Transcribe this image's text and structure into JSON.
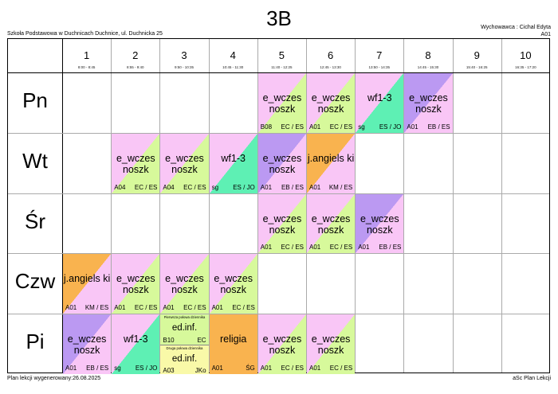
{
  "title": "3B",
  "school": "Szkoła Podstawowa w Duchnicach Duchnice, ul. Duchnicka 25",
  "teacher": "Wychowawca : Cichal Edyta",
  "room": "A01",
  "footer_left": "Plan lekcji wygenerowany:26.08.2025",
  "footer_right": "aSc Plan Lekcji",
  "colors": {
    "pink": "#f9c6f6",
    "lime": "#d7f99b",
    "teal": "#5ef0b4",
    "purple": "#bb99f2",
    "orange": "#f9b34f",
    "yellow": "#f9f9a8"
  },
  "periods": [
    {
      "num": "1",
      "time": "8:00 - 8:45"
    },
    {
      "num": "2",
      "time": "8:55 - 9:40"
    },
    {
      "num": "3",
      "time": "9:50 - 10:35"
    },
    {
      "num": "4",
      "time": "10:45 - 11:30"
    },
    {
      "num": "5",
      "time": "11:40 - 12:25"
    },
    {
      "num": "6",
      "time": "12:45 - 13:30"
    },
    {
      "num": "7",
      "time": "13:50 - 14:35"
    },
    {
      "num": "8",
      "time": "14:45 - 15:30"
    },
    {
      "num": "9",
      "time": "15:40 - 16:25"
    },
    {
      "num": "10",
      "time": "16:35 - 17:20"
    }
  ],
  "days": [
    "Pn",
    "Wt",
    "Śr",
    "Czw",
    "Pi"
  ],
  "lessons": [
    {
      "day": 0,
      "period": 5,
      "subject": "e_wczes noszk",
      "room": "B08",
      "teacher": "EC / ES",
      "c1": "pink",
      "c2": "lime"
    },
    {
      "day": 0,
      "period": 6,
      "subject": "e_wczes noszk",
      "room": "A01",
      "teacher": "EC / ES",
      "c1": "pink",
      "c2": "lime"
    },
    {
      "day": 0,
      "period": 7,
      "subject": "wf1-3",
      "room": "sg",
      "teacher": "ES / JO",
      "c1": "pink",
      "c2": "teal"
    },
    {
      "day": 0,
      "period": 8,
      "subject": "e_wczes noszk",
      "room": "A01",
      "teacher": "EB / ES",
      "c1": "purple",
      "c2": "pink"
    },
    {
      "day": 1,
      "period": 2,
      "subject": "e_wczes noszk",
      "room": "A04",
      "teacher": "EC / ES",
      "c1": "pink",
      "c2": "lime"
    },
    {
      "day": 1,
      "period": 3,
      "subject": "e_wczes noszk",
      "room": "A04",
      "teacher": "EC / ES",
      "c1": "pink",
      "c2": "lime"
    },
    {
      "day": 1,
      "period": 4,
      "subject": "wf1-3",
      "room": "sg",
      "teacher": "ES / JO",
      "c1": "pink",
      "c2": "teal"
    },
    {
      "day": 1,
      "period": 5,
      "subject": "e_wczes noszk",
      "room": "A01",
      "teacher": "EB / ES",
      "c1": "purple",
      "c2": "pink"
    },
    {
      "day": 1,
      "period": 6,
      "subject": "j.angiels ki",
      "room": "A01",
      "teacher": "KM / ES",
      "c1": "orange",
      "c2": "pink"
    },
    {
      "day": 2,
      "period": 5,
      "subject": "e_wczes noszk",
      "room": "A01",
      "teacher": "EC / ES",
      "c1": "pink",
      "c2": "lime"
    },
    {
      "day": 2,
      "period": 6,
      "subject": "e_wczes noszk",
      "room": "A01",
      "teacher": "EC / ES",
      "c1": "pink",
      "c2": "lime"
    },
    {
      "day": 2,
      "period": 7,
      "subject": "e_wczes noszk",
      "room": "A01",
      "teacher": "EB / ES",
      "c1": "purple",
      "c2": "pink"
    },
    {
      "day": 3,
      "period": 1,
      "subject": "j.angiels ki",
      "room": "A01",
      "teacher": "KM / ES",
      "c1": "orange",
      "c2": "pink"
    },
    {
      "day": 3,
      "period": 2,
      "subject": "e_wczes noszk",
      "room": "A01",
      "teacher": "EC / ES",
      "c1": "pink",
      "c2": "lime"
    },
    {
      "day": 3,
      "period": 3,
      "subject": "e_wczes noszk",
      "room": "A01",
      "teacher": "EC / ES",
      "c1": "pink",
      "c2": "lime"
    },
    {
      "day": 3,
      "period": 4,
      "subject": "e_wczes noszk",
      "room": "A01",
      "teacher": "EC / ES",
      "c1": "pink",
      "c2": "lime"
    },
    {
      "day": 4,
      "period": 1,
      "subject": "e_wczes noszk",
      "room": "A01",
      "teacher": "EB / ES",
      "c1": "purple",
      "c2": "pink"
    },
    {
      "day": 4,
      "period": 2,
      "subject": "wf1-3",
      "room": "sg",
      "teacher": "ES / JO",
      "c1": "pink",
      "c2": "teal"
    },
    {
      "day": 4,
      "period": 4,
      "subject": "religia",
      "room": "A01",
      "teacher": "ŚG",
      "c1": "orange",
      "c2": "orange"
    },
    {
      "day": 4,
      "period": 5,
      "subject": "e_wczes noszk",
      "room": "A01",
      "teacher": "EC / ES",
      "c1": "pink",
      "c2": "lime"
    },
    {
      "day": 4,
      "period": 6,
      "subject": "e_wczes noszk",
      "room": "A01",
      "teacher": "EC / ES",
      "c1": "pink",
      "c2": "lime"
    }
  ],
  "split_lessons": [
    {
      "day": 4,
      "period": 3,
      "top": {
        "note": "Pierwsza połowa dziennika",
        "subject": "ed.inf.",
        "room": "B10",
        "teacher": "EC",
        "color": "lime"
      },
      "bottom": {
        "note": "Druga połowa dziennika",
        "subject": "ed.inf.",
        "room": "A03",
        "teacher": "JKo",
        "color": "yellow"
      }
    }
  ]
}
